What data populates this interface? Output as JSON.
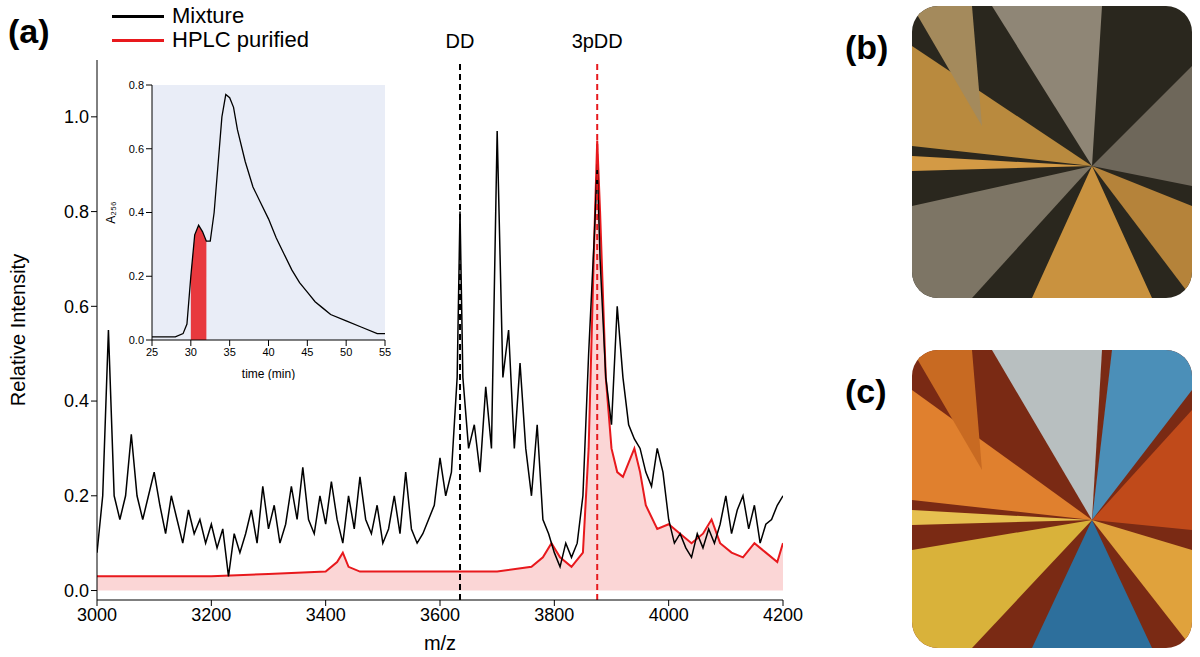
{
  "chart_data": [
    {
      "panel": "(a)",
      "type": "line",
      "x_label": "m/z",
      "y_label": "Relative Intensity",
      "xlim": [
        3000,
        4200
      ],
      "xticks": [
        3000,
        3200,
        3400,
        3600,
        3800,
        4000,
        4200
      ],
      "ylim": [
        -0.02,
        1.12
      ],
      "yticks": [
        {
          "value": 0,
          "label": "0.0"
        },
        0.2,
        0.4,
        0.6,
        0.8,
        {
          "value": 1,
          "label": "1.0"
        }
      ],
      "legend": "top left",
      "annotations": [
        {
          "x": 3635,
          "label": "DD",
          "color": "#000000",
          "line_style": "dashed"
        },
        {
          "x": 3875,
          "label": "3pDD",
          "color": "#e8191d",
          "line_style": "dashed"
        }
      ],
      "series": [
        {
          "name": "Mixture",
          "color": "#000000",
          "type": "line",
          "x": [
            3000,
            3010,
            3020,
            3030,
            3040,
            3050,
            3060,
            3070,
            3080,
            3090,
            3100,
            3110,
            3120,
            3130,
            3140,
            3150,
            3160,
            3170,
            3180,
            3190,
            3200,
            3210,
            3220,
            3230,
            3240,
            3250,
            3260,
            3270,
            3280,
            3290,
            3300,
            3310,
            3320,
            3330,
            3340,
            3350,
            3360,
            3370,
            3380,
            3390,
            3400,
            3410,
            3420,
            3430,
            3440,
            3450,
            3460,
            3470,
            3480,
            3490,
            3500,
            3510,
            3520,
            3530,
            3540,
            3550,
            3560,
            3570,
            3580,
            3590,
            3600,
            3610,
            3620,
            3630,
            3635,
            3640,
            3650,
            3660,
            3670,
            3680,
            3690,
            3700,
            3710,
            3720,
            3730,
            3740,
            3750,
            3760,
            3770,
            3780,
            3790,
            3800,
            3810,
            3820,
            3830,
            3840,
            3850,
            3860,
            3870,
            3875,
            3880,
            3890,
            3900,
            3910,
            3920,
            3930,
            3940,
            3950,
            3960,
            3970,
            3980,
            3990,
            4000,
            4010,
            4020,
            4030,
            4040,
            4050,
            4060,
            4070,
            4080,
            4090,
            4100,
            4110,
            4120,
            4130,
            4140,
            4150,
            4160,
            4170,
            4180,
            4190,
            4200
          ],
          "values": [
            0.08,
            0.2,
            0.55,
            0.2,
            0.15,
            0.2,
            0.33,
            0.2,
            0.15,
            0.2,
            0.25,
            0.18,
            0.12,
            0.2,
            0.15,
            0.1,
            0.17,
            0.12,
            0.15,
            0.1,
            0.14,
            0.09,
            0.13,
            0.03,
            0.12,
            0.08,
            0.12,
            0.17,
            0.1,
            0.22,
            0.13,
            0.18,
            0.1,
            0.14,
            0.22,
            0.15,
            0.26,
            0.15,
            0.12,
            0.2,
            0.14,
            0.23,
            0.15,
            0.1,
            0.2,
            0.13,
            0.24,
            0.15,
            0.12,
            0.18,
            0.1,
            0.13,
            0.2,
            0.12,
            0.25,
            0.13,
            0.1,
            0.12,
            0.15,
            0.18,
            0.28,
            0.2,
            0.25,
            0.45,
            0.8,
            0.45,
            0.3,
            0.35,
            0.25,
            0.43,
            0.3,
            0.97,
            0.45,
            0.55,
            0.3,
            0.48,
            0.3,
            0.2,
            0.35,
            0.15,
            0.12,
            0.08,
            0.05,
            0.1,
            0.07,
            0.1,
            0.2,
            0.5,
            0.75,
            0.9,
            0.7,
            0.45,
            0.35,
            0.6,
            0.45,
            0.35,
            0.32,
            0.3,
            0.25,
            0.22,
            0.3,
            0.25,
            0.15,
            0.1,
            0.12,
            0.09,
            0.07,
            0.12,
            0.09,
            0.13,
            0.1,
            0.14,
            0.2,
            0.12,
            0.17,
            0.2,
            0.13,
            0.18,
            0.1,
            0.14,
            0.15,
            0.18,
            0.2
          ]
        },
        {
          "name": "HPLC purified",
          "color": "#e8191d",
          "type": "area",
          "x": [
            3000,
            3100,
            3200,
            3300,
            3400,
            3420,
            3430,
            3440,
            3460,
            3600,
            3700,
            3760,
            3780,
            3795,
            3810,
            3830,
            3850,
            3860,
            3870,
            3875,
            3880,
            3890,
            3900,
            3910,
            3920,
            3930,
            3940,
            3950,
            3960,
            3980,
            4000,
            4020,
            4040,
            4060,
            4075,
            4090,
            4110,
            4130,
            4150,
            4170,
            4190,
            4200
          ],
          "values": [
            0.03,
            0.03,
            0.03,
            0.035,
            0.04,
            0.06,
            0.08,
            0.05,
            0.04,
            0.04,
            0.04,
            0.05,
            0.07,
            0.1,
            0.07,
            0.05,
            0.08,
            0.3,
            0.75,
            0.95,
            0.8,
            0.45,
            0.3,
            0.25,
            0.24,
            0.27,
            0.3,
            0.25,
            0.18,
            0.13,
            0.14,
            0.12,
            0.1,
            0.12,
            0.15,
            0.1,
            0.08,
            0.07,
            0.1,
            0.08,
            0.06,
            0.1
          ]
        }
      ]
    },
    {
      "type": "line",
      "x_label": "time (min)",
      "y_label": "A₂₅₆",
      "xlim": [
        25,
        55
      ],
      "xticks": [
        25,
        30,
        35,
        40,
        45,
        50,
        55
      ],
      "ylim": [
        0,
        0.8
      ],
      "yticks": [
        {
          "value": 0,
          "label": "0.0"
        },
        0.2,
        0.4,
        0.6,
        0.8
      ],
      "shaded": {
        "x": [
          30,
          32
        ],
        "color": "#e8191d"
      },
      "series": [
        {
          "color": "#000000",
          "x": [
            25,
            28,
            29,
            29.5,
            30,
            30.5,
            31,
            31.5,
            32,
            32.5,
            33,
            33.5,
            34,
            34.5,
            35,
            35.5,
            36,
            37,
            38,
            39,
            40,
            41,
            42,
            43,
            44,
            45,
            46,
            47,
            48,
            50,
            52,
            54,
            55
          ],
          "values": [
            0.01,
            0.01,
            0.02,
            0.05,
            0.2,
            0.33,
            0.36,
            0.34,
            0.31,
            0.31,
            0.4,
            0.55,
            0.7,
            0.77,
            0.76,
            0.73,
            0.66,
            0.56,
            0.48,
            0.43,
            0.38,
            0.32,
            0.27,
            0.22,
            0.18,
            0.15,
            0.12,
            0.1,
            0.08,
            0.06,
            0.04,
            0.02,
            0.02
          ]
        }
      ]
    }
  ],
  "images": [
    {
      "label": "(b)"
    },
    {
      "label": "(c)"
    }
  ]
}
